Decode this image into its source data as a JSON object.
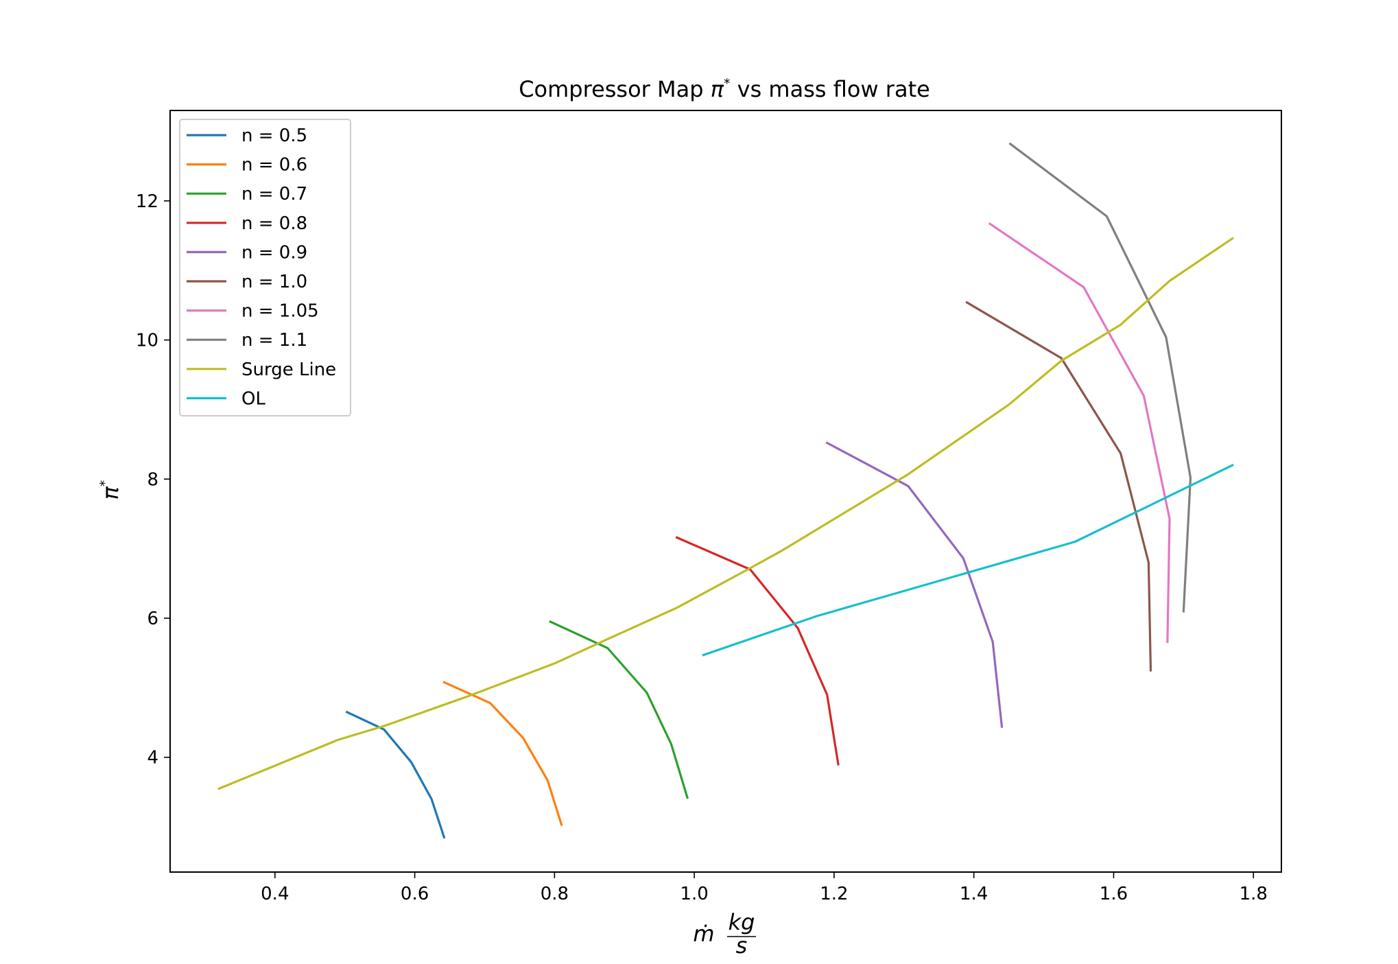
{
  "chart_data": {
    "type": "line",
    "title": "Compressor Map π* vs mass flow rate",
    "title_parts": {
      "prefix": "Compressor Map ",
      "symbol": "π",
      "sup": "*",
      "suffix": " vs mass flow rate"
    },
    "xlabel": "ṁ kg/s",
    "xlabel_parts": {
      "mdot": "ṁ",
      "num": "kg",
      "den": "s"
    },
    "ylabel": "π*",
    "ylabel_parts": {
      "symbol": "π",
      "sup": "*"
    },
    "xlim": [
      0.25,
      1.84
    ],
    "ylim": [
      2.35,
      13.3
    ],
    "xticks": [
      0.4,
      0.6,
      0.8,
      1.0,
      1.2,
      1.4,
      1.6,
      1.8
    ],
    "xtick_labels": [
      "0.4",
      "0.6",
      "0.8",
      "1.0",
      "1.2",
      "1.4",
      "1.6",
      "1.8"
    ],
    "yticks": [
      4,
      6,
      8,
      10,
      12
    ],
    "ytick_labels": [
      "4",
      "6",
      "8",
      "10",
      "12"
    ],
    "grid": false,
    "legend_position": "upper-left",
    "series": [
      {
        "name": "n = 0.5",
        "color": "#1f77b4",
        "x": [
          0.503,
          0.556,
          0.595,
          0.624,
          0.642
        ],
        "y": [
          4.65,
          4.4,
          3.93,
          3.4,
          2.85
        ]
      },
      {
        "name": "n = 0.6",
        "color": "#ff7f0e",
        "x": [
          0.642,
          0.708,
          0.755,
          0.79,
          0.81
        ],
        "y": [
          5.08,
          4.78,
          4.28,
          3.67,
          3.03
        ]
      },
      {
        "name": "n = 0.7",
        "color": "#2ca02c",
        "x": [
          0.794,
          0.876,
          0.932,
          0.967,
          0.99
        ],
        "y": [
          5.95,
          5.57,
          4.93,
          4.19,
          3.42
        ]
      },
      {
        "name": "n = 0.8",
        "color": "#d62728",
        "x": [
          0.975,
          1.08,
          1.148,
          1.19,
          1.206
        ],
        "y": [
          7.16,
          6.7,
          5.86,
          4.9,
          3.9
        ]
      },
      {
        "name": "n = 0.9",
        "color": "#9467bd",
        "x": [
          1.19,
          1.306,
          1.385,
          1.427,
          1.44
        ],
        "y": [
          8.52,
          7.9,
          6.86,
          5.66,
          4.44
        ]
      },
      {
        "name": "n = 1.0",
        "color": "#8c564b",
        "x": [
          1.39,
          1.525,
          1.61,
          1.65,
          1.653
        ],
        "y": [
          10.54,
          9.74,
          8.37,
          6.8,
          5.25
        ]
      },
      {
        "name": "n = 1.05",
        "color": "#e377c2",
        "x": [
          1.423,
          1.557,
          1.643,
          1.68,
          1.677
        ],
        "y": [
          11.67,
          10.76,
          9.2,
          7.43,
          5.66
        ]
      },
      {
        "name": "n = 1.1",
        "color": "#7f7f7f",
        "x": [
          1.452,
          1.59,
          1.675,
          1.71,
          1.7
        ],
        "y": [
          12.82,
          11.78,
          10.04,
          8.02,
          6.1
        ]
      },
      {
        "name": "Surge Line",
        "color": "#bcbd22",
        "x": [
          0.32,
          0.49,
          0.556,
          0.677,
          0.8,
          0.876,
          0.975,
          1.08,
          1.125,
          1.306,
          1.45,
          1.525,
          1.61,
          1.68,
          1.77
        ],
        "y": [
          3.55,
          4.25,
          4.45,
          4.88,
          5.35,
          5.7,
          6.15,
          6.72,
          6.97,
          8.07,
          9.07,
          9.7,
          10.22,
          10.85,
          11.46
        ]
      },
      {
        "name": "OL",
        "color": "#17becf",
        "x": [
          1.013,
          1.175,
          1.545,
          1.77
        ],
        "y": [
          5.47,
          6.03,
          7.1,
          8.2
        ]
      }
    ]
  }
}
